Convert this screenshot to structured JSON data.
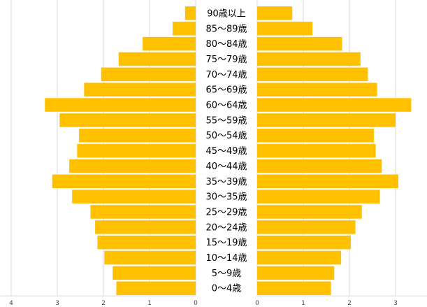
{
  "chart_data": {
    "type": "bar",
    "orientation": "horizontal",
    "layout": "population-pyramid",
    "categories": [
      "90歳以上",
      "85〜89歳",
      "80〜84歳",
      "75〜79歳",
      "70〜74歳",
      "65〜69歳",
      "60〜64歳",
      "55〜59歳",
      "50〜54歳",
      "45〜49歳",
      "40〜44歳",
      "35〜39歳",
      "30〜35歳",
      "25〜29歳",
      "20〜24歳",
      "15〜19歳",
      "10〜14歳",
      "5〜9歳",
      "0〜4歳"
    ],
    "series": [
      {
        "side": "left",
        "values": [
          0.23,
          0.5,
          1.15,
          1.67,
          2.05,
          2.42,
          3.27,
          2.95,
          2.53,
          2.57,
          2.74,
          3.11,
          2.68,
          2.28,
          2.18,
          2.13,
          1.98,
          1.8,
          1.72
        ]
      },
      {
        "side": "right",
        "values": [
          0.76,
          1.2,
          1.84,
          2.24,
          2.4,
          2.6,
          3.34,
          3.0,
          2.53,
          2.57,
          2.7,
          3.06,
          2.66,
          2.27,
          2.13,
          2.03,
          1.82,
          1.67,
          1.6
        ]
      }
    ],
    "left_axis": {
      "range": [
        0,
        4
      ],
      "ticks": [
        "4",
        "3",
        "2",
        "1",
        "0"
      ]
    },
    "right_axis": {
      "range": [
        0,
        3.4
      ],
      "ticks": [
        "0",
        "1",
        "2",
        "3"
      ]
    },
    "bar_color": "#ffc000",
    "grid": true,
    "title": "",
    "xlabel": "",
    "ylabel": ""
  }
}
